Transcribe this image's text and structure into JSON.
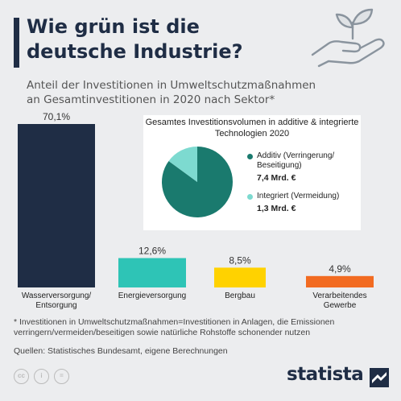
{
  "header": {
    "title": "Wie grün ist die deutsche Industrie?",
    "subtitle": "Anteil der Investitionen in Umweltschutzmaßnahmen an Gesamtinvestitionen in 2020 nach Sektor*"
  },
  "pie": {
    "title": "Gesamtes Investitionsvolumen in additive & integrierte Technologien 2020",
    "slices": [
      {
        "label": "Additiv (Verringerung/ Beseitigung)",
        "value_text": "7,4 Mrd. €",
        "value": 7.4,
        "color": "#1a7a6e"
      },
      {
        "label": "Integriert (Vermeidung)",
        "value_text": "1,3 Mrd. €",
        "value": 1.3,
        "color": "#7ddad0"
      }
    ]
  },
  "chart_data": {
    "type": "bar",
    "categories": [
      "Wasserversorgung/ Entsorgung",
      "Energieversorgung",
      "Bergbau",
      "Verarbeitendes Gewerbe"
    ],
    "values": [
      70.1,
      12.6,
      8.5,
      4.9
    ],
    "value_labels": [
      "70,1%",
      "12,6%",
      "8,5%",
      "4,9%"
    ],
    "colors": [
      "#1f2d45",
      "#2ec4b6",
      "#ffd200",
      "#f26b21"
    ],
    "ylim": [
      0,
      70.1
    ],
    "grid": false,
    "title": "",
    "xlabel": "",
    "ylabel": ""
  },
  "footer": {
    "footnote": "* Investitionen in Umweltschutzmaßnahmen=Investitionen in Anlagen, die Emissionen verringern/vermeiden/beseitigen sowie natürliche Rohstoffe schonender nutzen",
    "sources": "Quellen: Statistisches Bundesamt, eigene Berechnungen",
    "brand": "statista",
    "cc_icons": [
      "cc-icon",
      "by-icon",
      "nd-icon"
    ]
  }
}
